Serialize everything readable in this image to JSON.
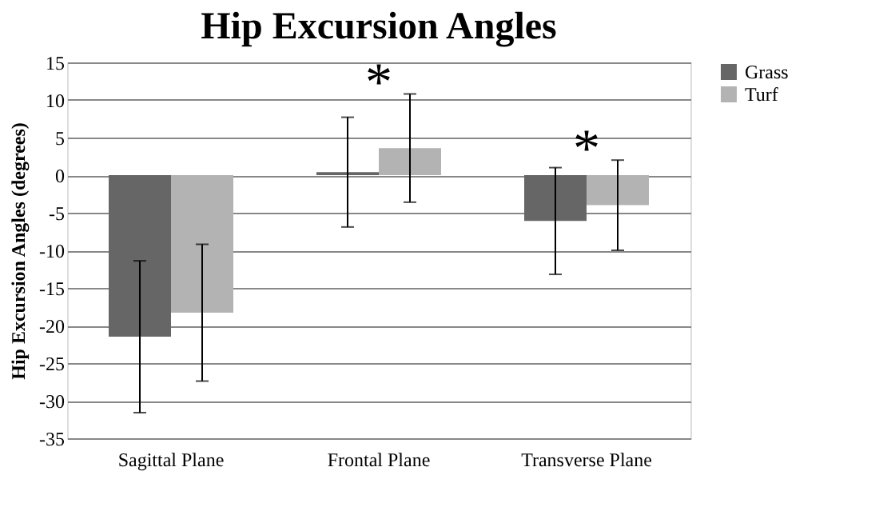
{
  "chart_data": {
    "type": "bar",
    "title": "Hip Excursion Angles",
    "ylabel": "Hip Excursion Angles (degrees)",
    "categories": [
      "Sagittal Plane",
      "Frontal Plane",
      "Transverse Plane"
    ],
    "series": [
      {
        "name": "Grass",
        "color": "#666666",
        "values": [
          -21.5,
          0.4,
          -6.1
        ],
        "errors": [
          10.1,
          7.3,
          7.1
        ]
      },
      {
        "name": "Turf",
        "color": "#b3b3b3",
        "values": [
          -18.3,
          3.6,
          -4.0
        ],
        "errors": [
          9.1,
          7.2,
          6.0
        ]
      }
    ],
    "ylim": [
      -35,
      15
    ],
    "yticks": [
      -35,
      -30,
      -25,
      -20,
      -15,
      -10,
      -5,
      0,
      5,
      10,
      15
    ],
    "grid": "y",
    "legend": "right",
    "annotations": [
      "*",
      "*"
    ]
  }
}
